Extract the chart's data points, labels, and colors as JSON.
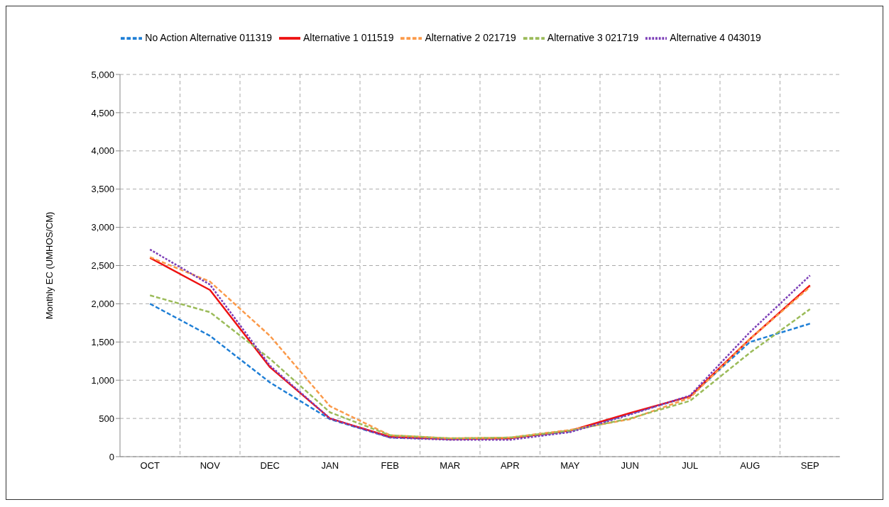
{
  "chart_data": {
    "type": "line",
    "ylabel": "Monthly EC (UMHOS/CM)",
    "categories": [
      "OCT",
      "NOV",
      "DEC",
      "JAN",
      "FEB",
      "MAR",
      "APR",
      "MAY",
      "JUN",
      "JUL",
      "AUG",
      "SEP"
    ],
    "series": [
      {
        "name": "No Action Alternative 011319",
        "color": "#1f7fd6",
        "line_style": "dashed",
        "values": [
          2000,
          1580,
          970,
          490,
          250,
          230,
          240,
          330,
          560,
          790,
          1500,
          1740
        ]
      },
      {
        "name": "Alternative 1 011519",
        "color": "#ee1111",
        "line_style": "solid",
        "values": [
          2600,
          2180,
          1170,
          500,
          260,
          230,
          240,
          340,
          570,
          790,
          1540,
          2240
        ]
      },
      {
        "name": "Alternative 2 021719",
        "color": "#fb9a4a",
        "line_style": "dashed",
        "values": [
          2610,
          2290,
          1580,
          660,
          280,
          240,
          250,
          350,
          490,
          770,
          1540,
          2220
        ]
      },
      {
        "name": "Alternative 3 021719",
        "color": "#9bbb59",
        "line_style": "dashed",
        "values": [
          2110,
          1890,
          1280,
          580,
          280,
          240,
          250,
          340,
          500,
          730,
          1360,
          1930
        ]
      },
      {
        "name": "Alternative 4 043019",
        "color": "#7d3fb8",
        "line_style": "dotted",
        "values": [
          2710,
          2250,
          1190,
          500,
          250,
          220,
          220,
          320,
          550,
          800,
          1630,
          2370
        ]
      }
    ],
    "ylim": [
      0,
      5000
    ],
    "yticks": [
      0,
      500,
      {
        "value": 1000,
        "label": "1,000"
      },
      {
        "value": 1500,
        "label": "1,500"
      },
      {
        "value": 2000,
        "label": "2,000"
      },
      {
        "value": 2500,
        "label": "2,500"
      },
      {
        "value": 3000,
        "label": "3,000"
      },
      {
        "value": 3500,
        "label": "3,500"
      },
      {
        "value": 4000,
        "label": "4,000"
      },
      {
        "value": 4500,
        "label": "4,500"
      },
      {
        "value": 5000,
        "label": "5,000"
      }
    ],
    "grid": true,
    "legend": "top",
    "marker": "none"
  }
}
